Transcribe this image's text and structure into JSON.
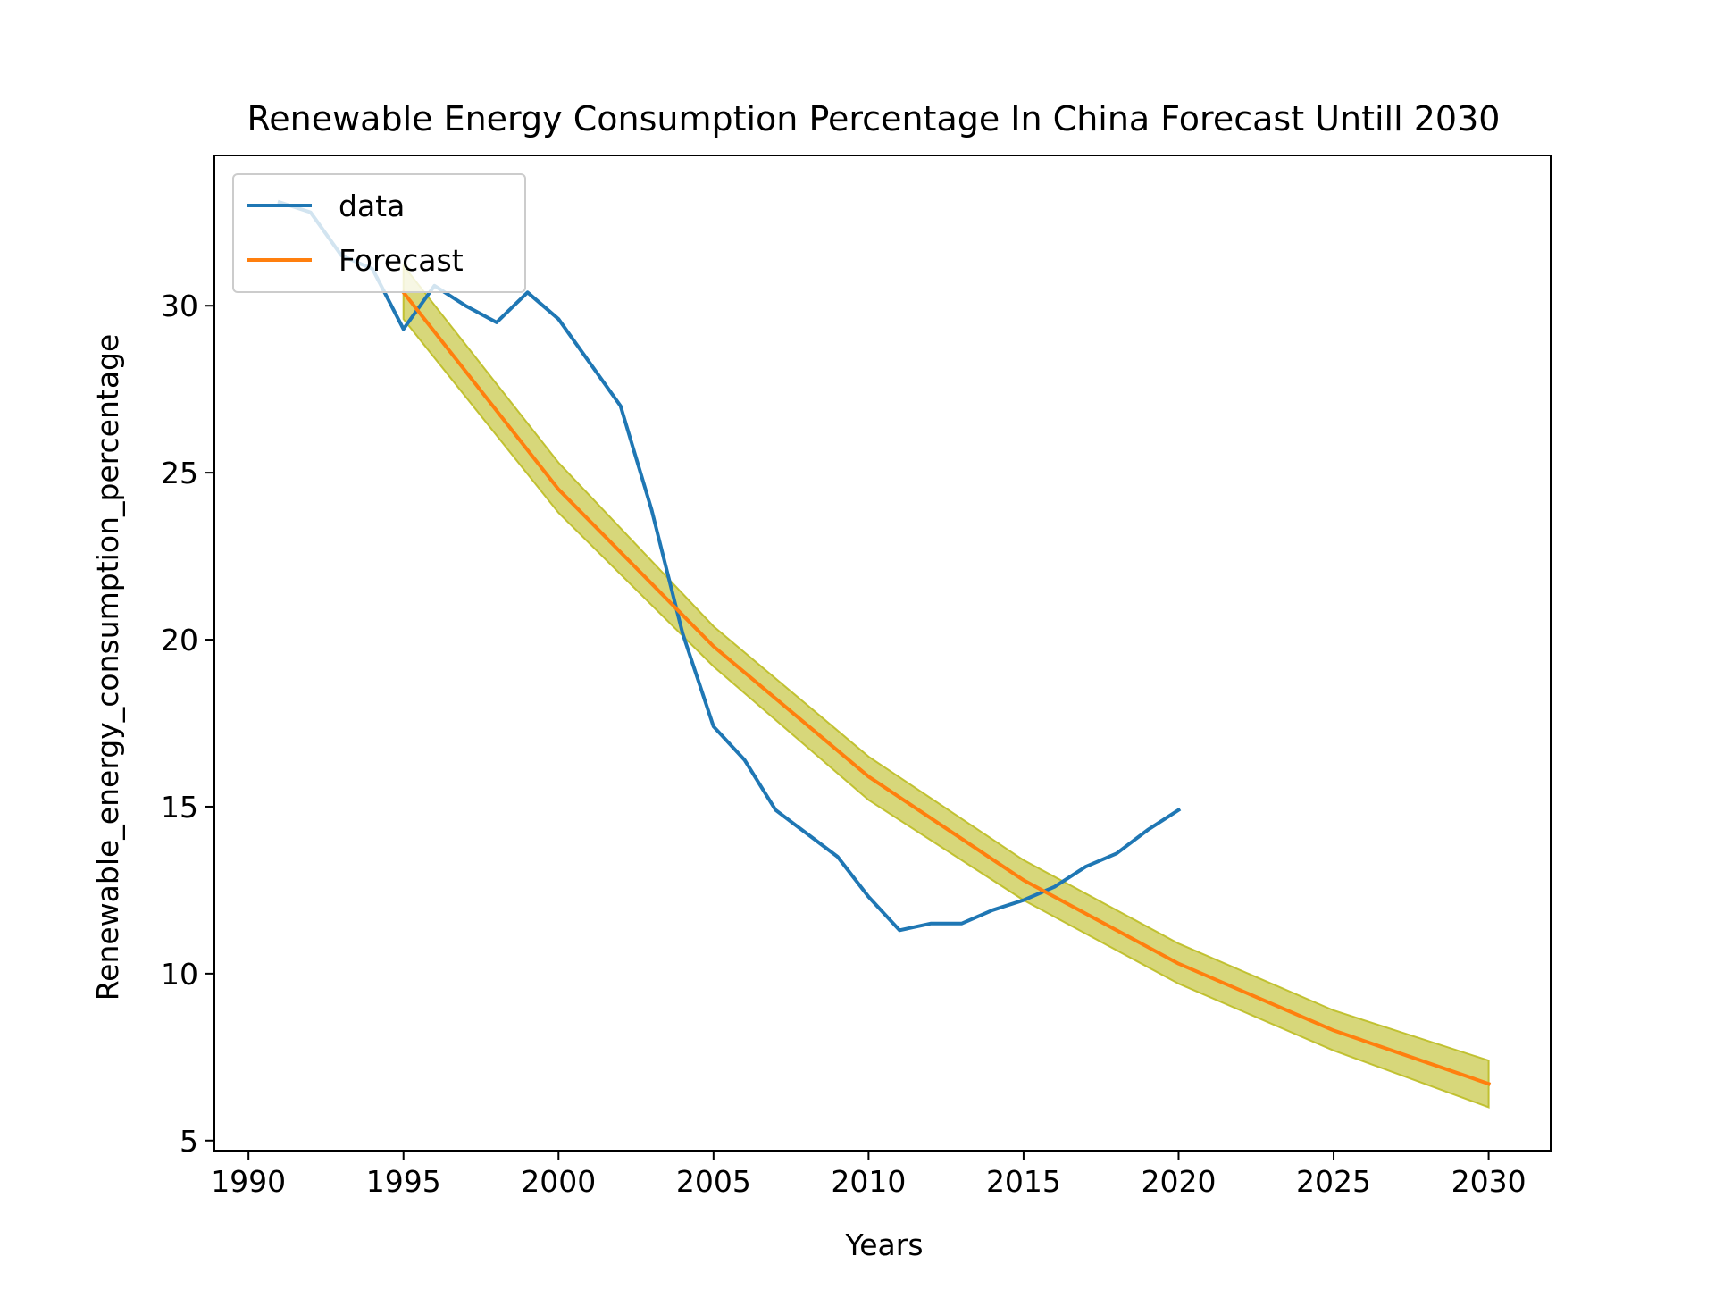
{
  "chart_data": {
    "type": "line",
    "title": "Renewable Energy Consumption Percentage In China Forecast Untill 2030",
    "xlabel": "Years",
    "ylabel": "Renewable_energy_consumption_percentage",
    "xlim": [
      1988.9,
      2032.0
    ],
    "ylim": [
      4.7,
      34.5
    ],
    "xticks": [
      1990,
      1995,
      2000,
      2005,
      2010,
      2015,
      2020,
      2025,
      2030
    ],
    "yticks": [
      5,
      10,
      15,
      20,
      25,
      30
    ],
    "grid": false,
    "legend_position": "upper-left",
    "series": [
      {
        "name": "data",
        "color": "#1f77b4",
        "x": [
          1991,
          1992,
          1993,
          1994,
          1995,
          1996,
          1997,
          1998,
          1999,
          2000,
          2001,
          2002,
          2003,
          2004,
          2005,
          2006,
          2007,
          2008,
          2009,
          2010,
          2011,
          2012,
          2013,
          2014,
          2015,
          2016,
          2017,
          2018,
          2019,
          2020
        ],
        "y": [
          33.1,
          32.8,
          31.5,
          31.1,
          29.3,
          30.6,
          30.0,
          29.5,
          30.4,
          29.6,
          28.3,
          27.0,
          23.9,
          20.2,
          17.4,
          16.4,
          14.9,
          14.2,
          13.5,
          12.3,
          11.3,
          11.5,
          11.5,
          11.9,
          12.2,
          12.6,
          13.2,
          13.6,
          14.3,
          14.9
        ]
      },
      {
        "name": "Forecast",
        "color": "#ff7f0e",
        "x": [
          1995,
          2000,
          2005,
          2010,
          2015,
          2020,
          2025,
          2030
        ],
        "y": [
          30.4,
          24.5,
          19.8,
          15.9,
          12.8,
          10.3,
          8.3,
          6.7
        ],
        "band_color": "#bcbd22",
        "band_opacity": 0.6,
        "lower": [
          29.6,
          23.8,
          19.2,
          15.2,
          12.2,
          9.7,
          7.7,
          6.0
        ],
        "upper": [
          31.2,
          25.3,
          20.4,
          16.5,
          13.4,
          10.9,
          8.9,
          7.4
        ]
      }
    ]
  }
}
